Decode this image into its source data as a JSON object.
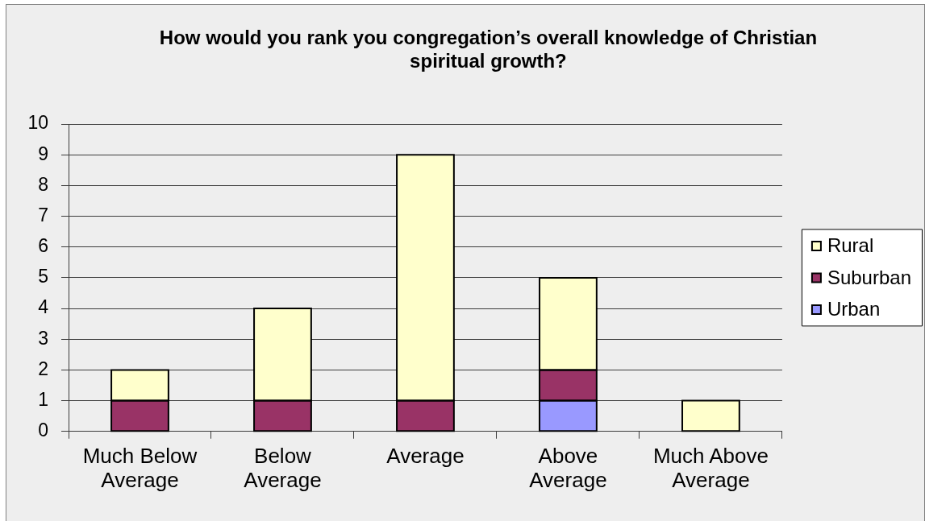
{
  "chart_data": {
    "type": "bar",
    "title": "How would you rank you congregation’s overall knowledge of Christian spiritual growth?",
    "categories": [
      "Much Below Average",
      "Below Average",
      "Average",
      "Above Average",
      "Much Above Average"
    ],
    "stacked": true,
    "series": [
      {
        "name": "Urban",
        "color": "#9999ff",
        "values": [
          0,
          0,
          0,
          1,
          0
        ]
      },
      {
        "name": "Suburban",
        "color": "#993366",
        "values": [
          1,
          1,
          1,
          1,
          0
        ]
      },
      {
        "name": "Rural",
        "color": "#ffffcc",
        "values": [
          1,
          3,
          8,
          3,
          1
        ]
      }
    ],
    "ylim": [
      0,
      10
    ],
    "yticks": [
      0,
      1,
      2,
      3,
      4,
      5,
      6,
      7,
      8,
      9,
      10
    ],
    "grid": "y",
    "legend": "right"
  }
}
